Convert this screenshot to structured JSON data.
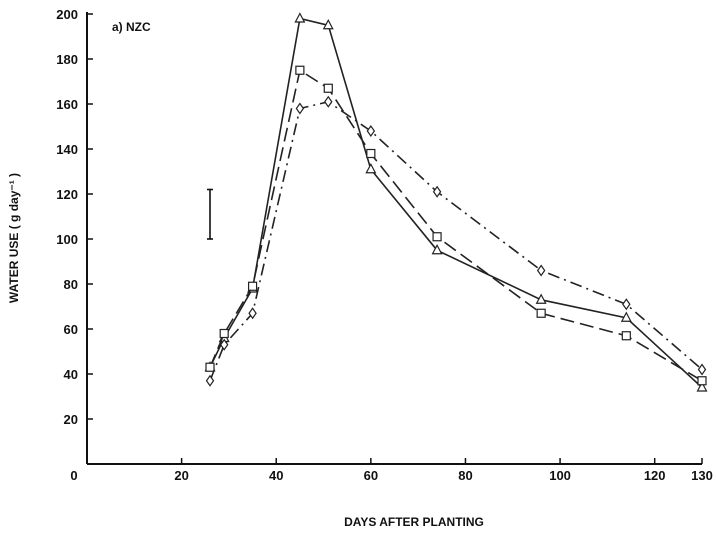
{
  "chart_data": {
    "type": "line",
    "title": "a) NZC",
    "xlabel": "DAYS AFTER PLANTING",
    "ylabel": "WATER USE ( g day⁻¹ )",
    "xlim": [
      0,
      130
    ],
    "ylim": [
      0,
      200
    ],
    "xticks": [
      "0",
      "20",
      "40",
      "60",
      "80",
      "100",
      "120",
      "130"
    ],
    "yticks": [
      "20",
      "40",
      "60",
      "80",
      "100",
      "120",
      "140",
      "160",
      "180",
      "200"
    ],
    "grid": false,
    "legend": "none",
    "error_bar": {
      "x": 26,
      "low": 100,
      "high": 122
    },
    "series": [
      {
        "marker": "triangle",
        "line_style": "solid",
        "x": [
          26,
          29,
          35,
          45,
          51,
          60,
          74,
          96,
          114,
          130
        ],
        "values": [
          43,
          56,
          78,
          198,
          195,
          131,
          95,
          73,
          65,
          34
        ]
      },
      {
        "marker": "square",
        "line_style": "dashed",
        "x": [
          26,
          29,
          35,
          45,
          51,
          60,
          74,
          96,
          114,
          130
        ],
        "values": [
          43,
          58,
          79,
          175,
          167,
          138,
          101,
          67,
          57,
          37
        ]
      },
      {
        "marker": "diamond",
        "line_style": "dash-dot",
        "x": [
          26,
          29,
          35,
          45,
          51,
          60,
          74,
          96,
          114,
          130
        ],
        "values": [
          37,
          53,
          67,
          158,
          161,
          148,
          121,
          86,
          71,
          42
        ]
      }
    ]
  }
}
